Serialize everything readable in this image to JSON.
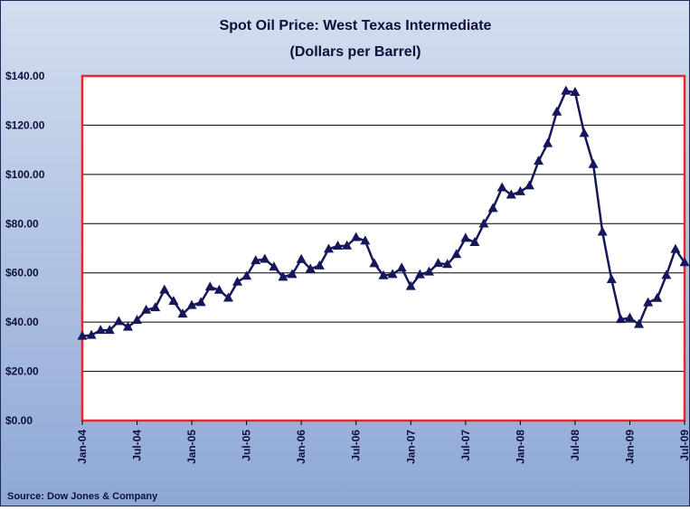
{
  "chart_data": {
    "type": "line",
    "title": "Spot Oil Price: West Texas Intermediate",
    "subtitle": "(Dollars per Barrel)",
    "source": "Source: Dow Jones & Company",
    "categories": [
      "Jan-04",
      null,
      null,
      null,
      null,
      null,
      "Jul-04",
      null,
      null,
      null,
      null,
      null,
      "Jan-05",
      null,
      null,
      null,
      null,
      null,
      "Jul-05",
      null,
      null,
      null,
      null,
      null,
      "Jan-06",
      null,
      null,
      null,
      null,
      null,
      "Jul-06",
      null,
      null,
      null,
      null,
      null,
      "Jan-07",
      null,
      null,
      null,
      null,
      null,
      "Jul-07",
      null,
      null,
      null,
      null,
      null,
      "Jan-08",
      null,
      null,
      null,
      null,
      null,
      "Jul-08",
      null,
      null,
      null,
      null,
      null,
      "Jan-09",
      null,
      null,
      null,
      null,
      null,
      "Jul-09"
    ],
    "series": [
      {
        "name": "WTI",
        "color": "#16165a",
        "values": [
          34.3,
          34.7,
          36.7,
          36.7,
          40.3,
          38.0,
          40.8,
          44.9,
          45.9,
          53.1,
          48.5,
          43.3,
          46.8,
          48.0,
          54.3,
          53.0,
          49.8,
          56.3,
          58.7,
          65.0,
          65.6,
          62.4,
          58.3,
          59.4,
          65.5,
          61.6,
          62.9,
          69.7,
          70.9,
          71.0,
          74.4,
          73.0,
          63.8,
          58.9,
          59.4,
          62.0,
          54.5,
          59.3,
          60.4,
          63.9,
          63.5,
          67.5,
          74.1,
          72.4,
          79.9,
          86.2,
          94.6,
          91.7,
          93.0,
          95.4,
          105.4,
          112.6,
          125.4,
          133.9,
          133.4,
          116.7,
          104.1,
          76.6,
          57.3,
          41.1,
          41.7,
          39.1,
          47.9,
          49.7,
          59.0,
          69.6,
          64.2
        ]
      }
    ],
    "ylim": [
      0,
      140
    ],
    "yticks": [
      {
        "value": 0,
        "label": "$0.00"
      },
      {
        "value": 20,
        "label": "$20.00"
      },
      {
        "value": 40,
        "label": "$40.00"
      },
      {
        "value": 60,
        "label": "$60.00"
      },
      {
        "value": 80,
        "label": "$80.00"
      },
      {
        "value": 100,
        "label": "$100.00"
      },
      {
        "value": 120,
        "label": "$120.00"
      },
      {
        "value": 140,
        "label": "$140.00"
      }
    ],
    "grid": true,
    "plot_border_color": "#e8262b"
  }
}
